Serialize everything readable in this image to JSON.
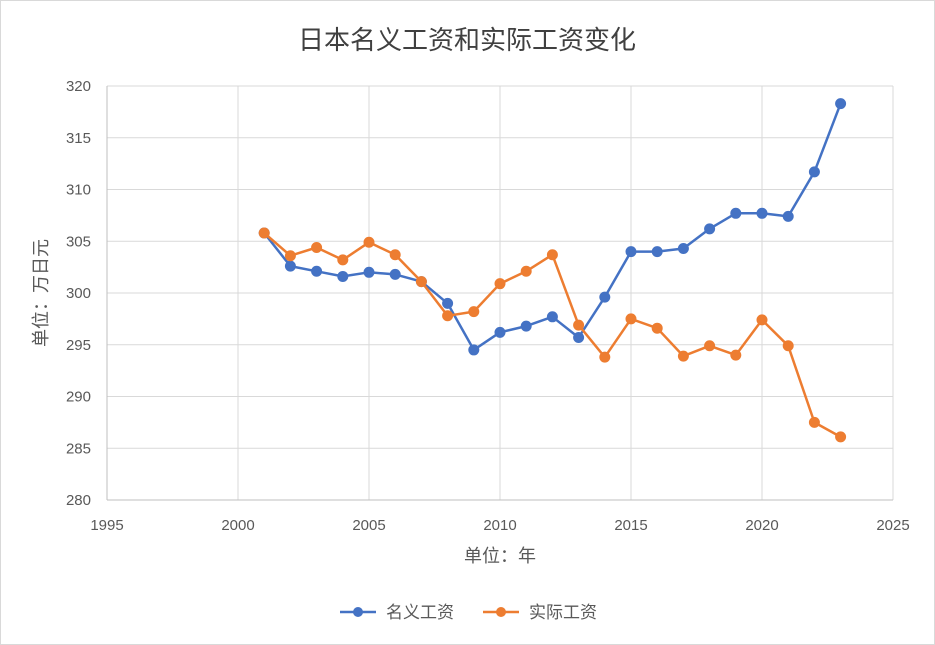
{
  "chart_data": {
    "type": "scatter",
    "title": "日本名义工资和实际工资变化",
    "xlabel": "单位：年",
    "ylabel": "单位：万日元",
    "xlim": [
      1995,
      2025
    ],
    "ylim": [
      280,
      320
    ],
    "xticks": [
      1995,
      2000,
      2005,
      2010,
      2015,
      2020,
      2025
    ],
    "yticks": [
      280,
      285,
      290,
      295,
      300,
      305,
      310,
      315,
      320
    ],
    "grid": true,
    "legend_position": "bottom",
    "series": [
      {
        "name": "名义工资",
        "color": "#4472C4",
        "x": [
          2001,
          2002,
          2003,
          2004,
          2005,
          2006,
          2007,
          2008,
          2009,
          2010,
          2011,
          2012,
          2013,
          2014,
          2015,
          2016,
          2017,
          2018,
          2019,
          2020,
          2021,
          2022,
          2023
        ],
        "y": [
          305.8,
          302.6,
          302.1,
          301.6,
          302.0,
          301.8,
          301.1,
          299.0,
          294.5,
          296.2,
          296.8,
          297.7,
          295.7,
          299.6,
          304.0,
          304.0,
          304.3,
          306.2,
          307.7,
          307.7,
          307.4,
          311.7,
          318.3
        ]
      },
      {
        "name": "实际工资",
        "color": "#ED7D31",
        "x": [
          2001,
          2002,
          2003,
          2004,
          2005,
          2006,
          2007,
          2008,
          2009,
          2010,
          2011,
          2012,
          2013,
          2014,
          2015,
          2016,
          2017,
          2018,
          2019,
          2020,
          2021,
          2022,
          2023
        ],
        "y": [
          305.8,
          303.6,
          304.4,
          303.2,
          304.9,
          303.7,
          301.1,
          297.8,
          298.2,
          300.9,
          302.1,
          303.7,
          296.9,
          293.8,
          297.5,
          296.6,
          293.9,
          294.9,
          294.0,
          297.4,
          294.9,
          287.5,
          286.1
        ]
      }
    ]
  }
}
